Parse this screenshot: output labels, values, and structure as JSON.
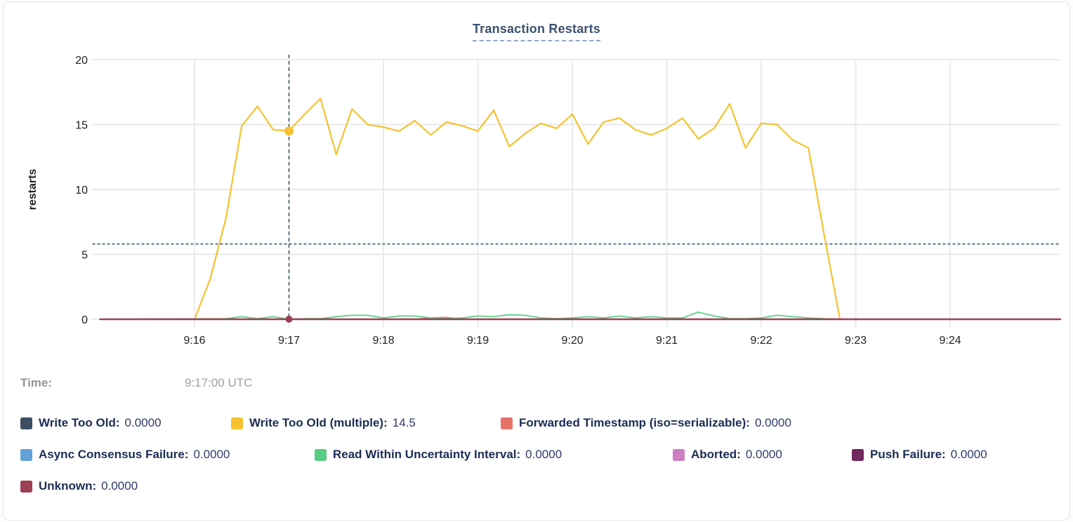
{
  "title": "Transaction Restarts",
  "time_row": {
    "label": "Time:",
    "value": "9:17:00 UTC"
  },
  "chart_data": {
    "type": "line",
    "title": "Transaction Restarts",
    "xlabel": "",
    "ylabel": "restarts",
    "ylim": [
      0,
      20
    ],
    "y_ticks": [
      0,
      5,
      10,
      15,
      20
    ],
    "x_ticks": [
      {
        "label": "9:16",
        "sec": 60
      },
      {
        "label": "9:17",
        "sec": 120
      },
      {
        "label": "9:18",
        "sec": 180
      },
      {
        "label": "9:19",
        "sec": 240
      },
      {
        "label": "9:20",
        "sec": 300
      },
      {
        "label": "9:21",
        "sec": 360
      },
      {
        "label": "9:22",
        "sec": 420
      },
      {
        "label": "9:23",
        "sec": 480
      },
      {
        "label": "9:24",
        "sec": 540
      }
    ],
    "x_domain_sec": [
      0,
      610
    ],
    "grid": true,
    "legend_position": "bottom",
    "reference_line": {
      "value": 5.8,
      "style": "dashed",
      "color": "#5d7f98"
    },
    "crosshair": {
      "sec": 120,
      "time_label": "9:17:00 UTC",
      "color": "#3e5a68",
      "dots": [
        {
          "key": "write-too-old-multiple",
          "value": 14.5,
          "r": 6.5
        },
        {
          "key": "unknown",
          "value": 0,
          "r": 5
        }
      ]
    },
    "series": [
      {
        "key": "write-too-old",
        "name": "Write Too Old",
        "color": "#3f4e63",
        "width": 1.6,
        "points": [
          [
            0,
            0
          ],
          [
            610,
            0
          ]
        ]
      },
      {
        "key": "write-too-old-multiple",
        "name": "Write Too Old (multiple)",
        "color": "#f6c231",
        "width": 2.2,
        "points": [
          [
            60,
            0
          ],
          [
            70,
            3.1
          ],
          [
            80,
            7.8
          ],
          [
            90,
            14.9
          ],
          [
            100,
            16.4
          ],
          [
            110,
            14.6
          ],
          [
            120,
            14.5
          ],
          [
            130,
            15.8
          ],
          [
            140,
            17.0
          ],
          [
            150,
            12.7
          ],
          [
            160,
            16.2
          ],
          [
            170,
            15.0
          ],
          [
            180,
            14.8
          ],
          [
            190,
            14.5
          ],
          [
            200,
            15.3
          ],
          [
            210,
            14.2
          ],
          [
            220,
            15.2
          ],
          [
            230,
            14.9
          ],
          [
            240,
            14.5
          ],
          [
            250,
            16.1
          ],
          [
            260,
            13.3
          ],
          [
            270,
            14.3
          ],
          [
            280,
            15.1
          ],
          [
            290,
            14.7
          ],
          [
            300,
            15.8
          ],
          [
            310,
            13.5
          ],
          [
            320,
            15.2
          ],
          [
            330,
            15.5
          ],
          [
            340,
            14.6
          ],
          [
            350,
            14.2
          ],
          [
            360,
            14.7
          ],
          [
            370,
            15.5
          ],
          [
            380,
            13.9
          ],
          [
            390,
            14.7
          ],
          [
            400,
            16.6
          ],
          [
            410,
            13.2
          ],
          [
            420,
            15.1
          ],
          [
            430,
            15.0
          ],
          [
            440,
            13.8
          ],
          [
            450,
            13.2
          ],
          [
            460,
            6.5
          ],
          [
            470,
            0
          ]
        ]
      },
      {
        "key": "forwarded-timestamp",
        "name": "Forwarded Timestamp (iso=serializable)",
        "color": "#e8716a",
        "width": 1.8,
        "points": [
          [
            0,
            0
          ],
          [
            200,
            0
          ],
          [
            210,
            0.1
          ],
          [
            220,
            0.14
          ],
          [
            230,
            0
          ],
          [
            610,
            0
          ]
        ]
      },
      {
        "key": "async-consensus-failure",
        "name": "Async Consensus Failure",
        "color": "#62a2d8",
        "width": 1.6,
        "points": [
          [
            0,
            0
          ],
          [
            610,
            0
          ]
        ]
      },
      {
        "key": "read-within-uncertainty-interval",
        "name": "Read Within Uncertainty Interval",
        "color": "#58cc82",
        "width": 1.7,
        "points": [
          [
            0,
            0
          ],
          [
            80,
            0.05
          ],
          [
            90,
            0.2
          ],
          [
            100,
            0.05
          ],
          [
            110,
            0.2
          ],
          [
            120,
            0
          ],
          [
            130,
            0.05
          ],
          [
            140,
            0.05
          ],
          [
            150,
            0.2
          ],
          [
            160,
            0.3
          ],
          [
            170,
            0.3
          ],
          [
            180,
            0.1
          ],
          [
            190,
            0.25
          ],
          [
            200,
            0.25
          ],
          [
            210,
            0.1
          ],
          [
            220,
            0.05
          ],
          [
            230,
            0.1
          ],
          [
            240,
            0.25
          ],
          [
            250,
            0.2
          ],
          [
            260,
            0.35
          ],
          [
            270,
            0.3
          ],
          [
            280,
            0.1
          ],
          [
            290,
            0.05
          ],
          [
            300,
            0.1
          ],
          [
            310,
            0.2
          ],
          [
            320,
            0.1
          ],
          [
            330,
            0.25
          ],
          [
            340,
            0.1
          ],
          [
            350,
            0.2
          ],
          [
            360,
            0.1
          ],
          [
            370,
            0.1
          ],
          [
            380,
            0.55
          ],
          [
            390,
            0.25
          ],
          [
            400,
            0.05
          ],
          [
            410,
            0.05
          ],
          [
            420,
            0.1
          ],
          [
            430,
            0.3
          ],
          [
            440,
            0.2
          ],
          [
            450,
            0.1
          ],
          [
            460,
            0.05
          ],
          [
            470,
            0
          ],
          [
            610,
            0
          ]
        ]
      },
      {
        "key": "aborted",
        "name": "Aborted",
        "color": "#cc80c1",
        "width": 1.6,
        "points": [
          [
            0,
            0
          ],
          [
            610,
            0
          ]
        ]
      },
      {
        "key": "push-failure",
        "name": "Push Failure",
        "color": "#71285d",
        "width": 1.6,
        "points": [
          [
            0,
            0
          ],
          [
            610,
            0
          ]
        ]
      },
      {
        "key": "unknown",
        "name": "Unknown",
        "color": "#9c4055",
        "width": 2.5,
        "points": [
          [
            0,
            0
          ],
          [
            610,
            0
          ]
        ]
      }
    ]
  },
  "legend": {
    "items": [
      {
        "row": 0,
        "key": "write-too-old",
        "label": "Write Too Old:",
        "value": "0.0000",
        "color": "#3f4e63"
      },
      {
        "row": 0,
        "key": "write-too-old-multiple",
        "label": "Write Too Old (multiple):",
        "value": "14.5",
        "color": "#f6c231"
      },
      {
        "row": 0,
        "key": "forwarded-timestamp",
        "label": "Forwarded Timestamp (iso=serializable):",
        "value": "0.0000",
        "color": "#e8716a"
      },
      {
        "row": 1,
        "key": "async-consensus-failure",
        "label": "Async Consensus Failure:",
        "value": "0.0000",
        "color": "#62a2d8"
      },
      {
        "row": 1,
        "key": "read-within-uncertainty-interval",
        "label": "Read Within Uncertainty Interval:",
        "value": "0.0000",
        "color": "#58cc82"
      },
      {
        "row": 1,
        "key": "aborted",
        "label": "Aborted:",
        "value": "0.0000",
        "color": "#cc80c1"
      },
      {
        "row": 1,
        "key": "push-failure",
        "label": "Push Failure:",
        "value": "0.0000",
        "color": "#71285d"
      },
      {
        "row": 2,
        "key": "unknown",
        "label": "Unknown:",
        "value": "0.0000",
        "color": "#9c4055"
      }
    ]
  }
}
